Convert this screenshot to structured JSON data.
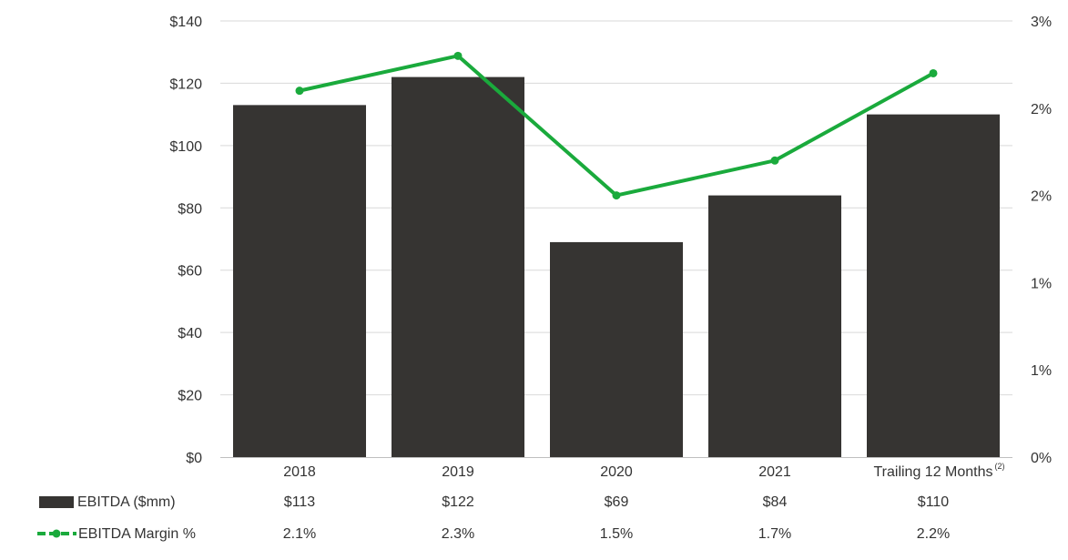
{
  "chart_data": {
    "type": "bar",
    "categories": [
      "2018",
      "2019",
      "2020",
      "2021",
      "Trailing 12 Months"
    ],
    "category_superscripts": [
      "",
      "",
      "",
      "",
      "(2)"
    ],
    "series": [
      {
        "name": "EBITDA ($mm)",
        "type": "bar",
        "axis": "left",
        "values": [
          113,
          122,
          69,
          84,
          110
        ],
        "value_labels": [
          "$113",
          "$122",
          "$69",
          "$84",
          "$110"
        ],
        "color": "#363432"
      },
      {
        "name": "EBITDA Margin %",
        "type": "line",
        "axis": "right",
        "values": [
          2.1,
          2.3,
          1.5,
          1.7,
          2.2
        ],
        "value_labels": [
          "2.1%",
          "2.3%",
          "1.5%",
          "1.7%",
          "2.2%"
        ],
        "color": "#1aaa3c"
      }
    ],
    "left_axis": {
      "ylim": [
        0,
        140
      ],
      "ticks": [
        0,
        20,
        40,
        60,
        80,
        100,
        120,
        140
      ],
      "tick_labels": [
        "$0",
        "$20",
        "$40",
        "$60",
        "$80",
        "$100",
        "$120",
        "$140"
      ]
    },
    "right_axis": {
      "ylim": [
        0,
        2.5
      ],
      "ticks": [
        0,
        0.5,
        1,
        1.5,
        2,
        2.5
      ],
      "tick_labels": [
        "0%",
        "1%",
        "1%",
        "2%",
        "2%",
        "3%"
      ]
    },
    "grid": true,
    "legend": "bottom-left table"
  }
}
